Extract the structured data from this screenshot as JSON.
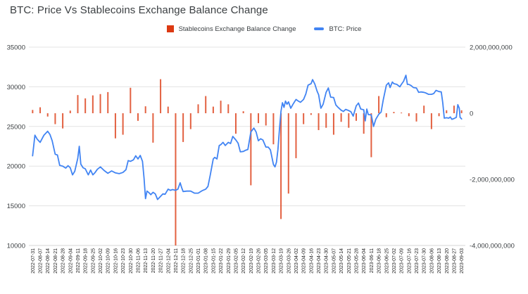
{
  "title": "BTC: Price Vs Stablecoins Exchange Balance Change",
  "legend": [
    {
      "label": "Stablecoins Exchange Balance Change",
      "color": "#dc3912",
      "marker": "square"
    },
    {
      "label": "BTC: Price",
      "color": "#4184f3",
      "marker": "line"
    }
  ],
  "colors": {
    "background": "#ffffff",
    "gridline": "#e3e3e3",
    "bar": "#dc3912",
    "line": "#4184f3",
    "text": "#3c4043"
  },
  "chart_data": {
    "type": "combo",
    "grid": true,
    "legend_position": "top",
    "categories": [
      "2022-07-31",
      "2022-08-07",
      "2022-08-14",
      "2022-08-21",
      "2022-08-28",
      "2022-09-04",
      "2022-09-11",
      "2022-09-18",
      "2022-09-25",
      "2022-10-02",
      "2022-10-09",
      "2022-10-16",
      "2022-10-23",
      "2022-10-30",
      "2022-11-06",
      "2022-11-13",
      "2022-11-20",
      "2022-11-27",
      "2022-12-04",
      "2022-12-11",
      "2022-12-18",
      "2022-12-25",
      "2023-01-01",
      "2023-01-08",
      "2023-01-15",
      "2023-01-22",
      "2023-01-29",
      "2023-02-05",
      "2023-02-12",
      "2023-02-19",
      "2023-02-26",
      "2023-03-05",
      "2023-03-12",
      "2023-03-19",
      "2023-03-26",
      "2023-04-02",
      "2023-04-09",
      "2023-04-16",
      "2023-04-23",
      "2023-04-30",
      "2023-05-07",
      "2023-05-14",
      "2023-05-21",
      "2023-05-28",
      "2023-06-04",
      "2023-06-11",
      "2023-06-18",
      "2023-06-25",
      "2023-07-02",
      "2023-07-09",
      "2023-07-16",
      "2023-07-23",
      "2023-07-30",
      "2023-08-06",
      "2023-08-13",
      "2023-08-20",
      "2023-08-27",
      "2023-09-03"
    ],
    "series": [
      {
        "name": "Stablecoins Exchange Balance Change",
        "type": "bar",
        "axis": "right",
        "color": "#dc3912",
        "values": [
          100000000,
          180000000,
          -100000000,
          -330000000,
          -460000000,
          80000000,
          550000000,
          450000000,
          540000000,
          580000000,
          640000000,
          -760000000,
          -650000000,
          770000000,
          -230000000,
          210000000,
          -890000000,
          1030000000,
          200000000,
          -4000000000,
          -870000000,
          -480000000,
          270000000,
          520000000,
          200000000,
          380000000,
          270000000,
          -620000000,
          60000000,
          -2180000000,
          -300000000,
          -370000000,
          -940000000,
          -3200000000,
          -2430000000,
          -1360000000,
          -330000000,
          -50000000,
          -510000000,
          -440000000,
          -650000000,
          -260000000,
          -440000000,
          -230000000,
          -620000000,
          -1330000000,
          520000000,
          -120000000,
          40000000,
          20000000,
          -90000000,
          -250000000,
          230000000,
          -480000000,
          -90000000,
          90000000,
          230000000,
          90000000
        ]
      },
      {
        "name": "BTC: Price",
        "type": "line",
        "axis": "left",
        "color": "#4184f3",
        "x_unit": "week_index_into_categories",
        "points": [
          [
            0,
            21300
          ],
          [
            0.3,
            23900
          ],
          [
            0.6,
            23400
          ],
          [
            1,
            23000
          ],
          [
            1.5,
            23900
          ],
          [
            2,
            24400
          ],
          [
            2.3,
            24000
          ],
          [
            2.6,
            23200
          ],
          [
            3,
            21500
          ],
          [
            3.3,
            21400
          ],
          [
            3.6,
            20100
          ],
          [
            4,
            20000
          ],
          [
            4.4,
            19750
          ],
          [
            4.7,
            20050
          ],
          [
            5,
            19800
          ],
          [
            5.3,
            18900
          ],
          [
            5.6,
            19350
          ],
          [
            6,
            21000
          ],
          [
            6.2,
            22500
          ],
          [
            6.4,
            20250
          ],
          [
            6.7,
            19800
          ],
          [
            7,
            19650
          ],
          [
            7.4,
            18900
          ],
          [
            7.7,
            19500
          ],
          [
            8,
            18900
          ],
          [
            8.3,
            19200
          ],
          [
            8.6,
            19600
          ],
          [
            9,
            19900
          ],
          [
            9.5,
            19450
          ],
          [
            10,
            19100
          ],
          [
            10.5,
            19400
          ],
          [
            11,
            19150
          ],
          [
            11.5,
            19050
          ],
          [
            12,
            19200
          ],
          [
            12.4,
            19550
          ],
          [
            12.7,
            20700
          ],
          [
            13,
            20600
          ],
          [
            13.4,
            20800
          ],
          [
            13.7,
            21300
          ],
          [
            14,
            20900
          ],
          [
            14.3,
            21350
          ],
          [
            14.6,
            20600
          ],
          [
            14.8,
            18500
          ],
          [
            15,
            15900
          ],
          [
            15.2,
            16850
          ],
          [
            15.4,
            16700
          ],
          [
            15.7,
            16400
          ],
          [
            16,
            16700
          ],
          [
            16.3,
            16500
          ],
          [
            16.6,
            15800
          ],
          [
            17,
            16200
          ],
          [
            17.3,
            16500
          ],
          [
            17.6,
            16450
          ],
          [
            18,
            17100
          ],
          [
            18.3,
            16950
          ],
          [
            18.6,
            17050
          ],
          [
            19,
            16950
          ],
          [
            19.3,
            17100
          ],
          [
            19.6,
            17900
          ],
          [
            19.8,
            17300
          ],
          [
            20,
            16800
          ],
          [
            20.5,
            16850
          ],
          [
            21,
            16850
          ],
          [
            21.5,
            16600
          ],
          [
            22,
            16600
          ],
          [
            22.5,
            16900
          ],
          [
            23,
            17100
          ],
          [
            23.3,
            17450
          ],
          [
            23.6,
            18850
          ],
          [
            23.8,
            19900
          ],
          [
            24,
            20900
          ],
          [
            24.2,
            21100
          ],
          [
            24.5,
            20900
          ],
          [
            24.8,
            22600
          ],
          [
            25,
            22700
          ],
          [
            25.3,
            23000
          ],
          [
            25.6,
            22600
          ],
          [
            26,
            23000
          ],
          [
            26.3,
            22850
          ],
          [
            26.6,
            23750
          ],
          [
            27,
            23300
          ],
          [
            27.3,
            22900
          ],
          [
            27.6,
            21800
          ],
          [
            28,
            21850
          ],
          [
            28.3,
            22000
          ],
          [
            28.6,
            22100
          ],
          [
            29,
            24300
          ],
          [
            29.4,
            24800
          ],
          [
            29.7,
            24300
          ],
          [
            30,
            23200
          ],
          [
            30.3,
            23450
          ],
          [
            30.6,
            23300
          ],
          [
            31,
            22400
          ],
          [
            31.3,
            22400
          ],
          [
            31.6,
            22050
          ],
          [
            32,
            20200
          ],
          [
            32.2,
            19900
          ],
          [
            32.4,
            20500
          ],
          [
            32.6,
            22100
          ],
          [
            32.8,
            24700
          ],
          [
            33,
            26900
          ],
          [
            33.2,
            28000
          ],
          [
            33.4,
            27400
          ],
          [
            33.6,
            28200
          ],
          [
            33.8,
            27800
          ],
          [
            34,
            28100
          ],
          [
            34.3,
            27300
          ],
          [
            34.6,
            27800
          ],
          [
            35,
            28400
          ],
          [
            35.3,
            28200
          ],
          [
            35.6,
            28050
          ],
          [
            36,
            28400
          ],
          [
            36.3,
            29100
          ],
          [
            36.6,
            30200
          ],
          [
            37,
            30400
          ],
          [
            37.2,
            30900
          ],
          [
            37.5,
            30350
          ],
          [
            37.8,
            29450
          ],
          [
            38,
            29000
          ],
          [
            38.3,
            27300
          ],
          [
            38.6,
            27800
          ],
          [
            39,
            29300
          ],
          [
            39.3,
            29850
          ],
          [
            39.6,
            28700
          ],
          [
            40,
            28650
          ],
          [
            40.3,
            27700
          ],
          [
            40.6,
            27400
          ],
          [
            41,
            27050
          ],
          [
            41.3,
            26900
          ],
          [
            41.6,
            27150
          ],
          [
            42,
            27000
          ],
          [
            42.3,
            26850
          ],
          [
            42.6,
            26300
          ],
          [
            43,
            27600
          ],
          [
            43.3,
            27950
          ],
          [
            43.6,
            27200
          ],
          [
            44,
            27100
          ],
          [
            44.2,
            25700
          ],
          [
            44.4,
            27200
          ],
          [
            44.6,
            26500
          ],
          [
            45,
            26450
          ],
          [
            45.3,
            25000
          ],
          [
            45.6,
            25900
          ],
          [
            46,
            26550
          ],
          [
            46.3,
            26800
          ],
          [
            46.6,
            28400
          ],
          [
            47,
            30200
          ],
          [
            47.3,
            30500
          ],
          [
            47.5,
            29900
          ],
          [
            47.8,
            30600
          ],
          [
            48,
            30400
          ],
          [
            48.4,
            30300
          ],
          [
            48.8,
            30000
          ],
          [
            49,
            30300
          ],
          [
            49.3,
            30700
          ],
          [
            49.6,
            31450
          ],
          [
            49.8,
            30300
          ],
          [
            50,
            30300
          ],
          [
            50.3,
            30150
          ],
          [
            50.6,
            29900
          ],
          [
            51,
            29850
          ],
          [
            51.3,
            29300
          ],
          [
            51.6,
            29350
          ],
          [
            52,
            29300
          ],
          [
            52.3,
            29200
          ],
          [
            52.6,
            29050
          ],
          [
            53,
            29050
          ],
          [
            53.3,
            29150
          ],
          [
            53.6,
            29550
          ],
          [
            54,
            29400
          ],
          [
            54.3,
            29350
          ],
          [
            54.5,
            28000
          ],
          [
            54.7,
            26050
          ],
          [
            55,
            26100
          ],
          [
            55.3,
            26050
          ],
          [
            55.5,
            26200
          ],
          [
            55.7,
            25900
          ],
          [
            56,
            26000
          ],
          [
            56.3,
            26150
          ],
          [
            56.5,
            27750
          ],
          [
            56.7,
            27300
          ],
          [
            56.8,
            26150
          ],
          [
            57,
            25950
          ]
        ]
      }
    ],
    "left_axis": {
      "min": 10000,
      "max": 35000,
      "ticks": [
        10000,
        15000,
        20000,
        25000,
        30000,
        35000
      ],
      "tick_labels": [
        "10000",
        "15000",
        "20000",
        "25000",
        "30000",
        "35000"
      ]
    },
    "right_axis": {
      "min": -4000000000,
      "max": 2000000000,
      "ticks": [
        -4000000000,
        -2000000000,
        0,
        2000000000
      ],
      "tick_labels": [
        "-4,000,000,000",
        "-2,000,000,000",
        "0",
        "2,000,000,000"
      ]
    }
  }
}
